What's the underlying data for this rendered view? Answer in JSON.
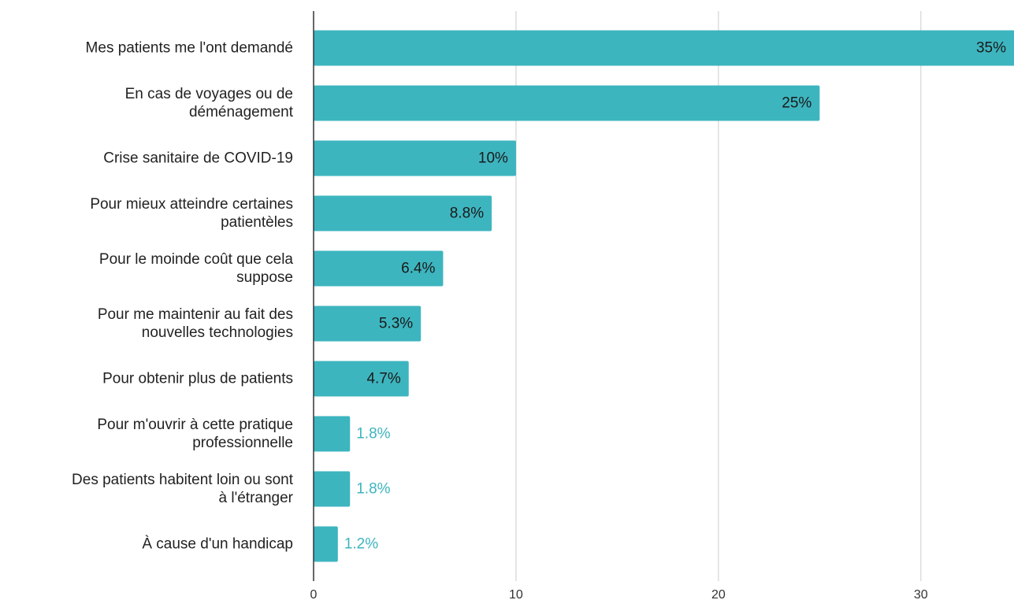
{
  "chart_data": {
    "type": "bar",
    "orientation": "horizontal",
    "categories": [
      [
        "Mes patients me l'ont demandé"
      ],
      [
        "En cas de voyages ou de",
        "déménagement"
      ],
      [
        "Crise sanitaire de COVID-19"
      ],
      [
        "Pour mieux atteindre certaines",
        "patientèles"
      ],
      [
        "Pour le moinde coût que cela",
        "suppose"
      ],
      [
        "Pour me maintenir au fait des",
        "nouvelles technologies"
      ],
      [
        "Pour obtenir plus de patients"
      ],
      [
        "Pour m'ouvrir à cette pratique",
        "professionnelle"
      ],
      [
        "Des patients habitent loin ou sont",
        "à l'étranger"
      ],
      [
        "À cause d'un handicap"
      ]
    ],
    "values": [
      35,
      25,
      10,
      8.8,
      6.4,
      5.3,
      4.7,
      1.8,
      1.8,
      1.2
    ],
    "data_labels": [
      "35%",
      "25%",
      "10%",
      "8.8%",
      "6.4%",
      "5.3%",
      "4.7%",
      "1.8%",
      "1.8%",
      "1.2%"
    ],
    "xticks": [
      0,
      10,
      20,
      30
    ],
    "xlim": [
      0,
      34.6
    ],
    "grid": true,
    "legend": "none",
    "title": "",
    "xlabel": "",
    "ylabel": "",
    "colors": {
      "bar": "#3db5bf",
      "label_inside": "#1a1a1a",
      "label_outside": "#3db5bf",
      "grid": "#cccccc",
      "axis": "#333333"
    }
  }
}
